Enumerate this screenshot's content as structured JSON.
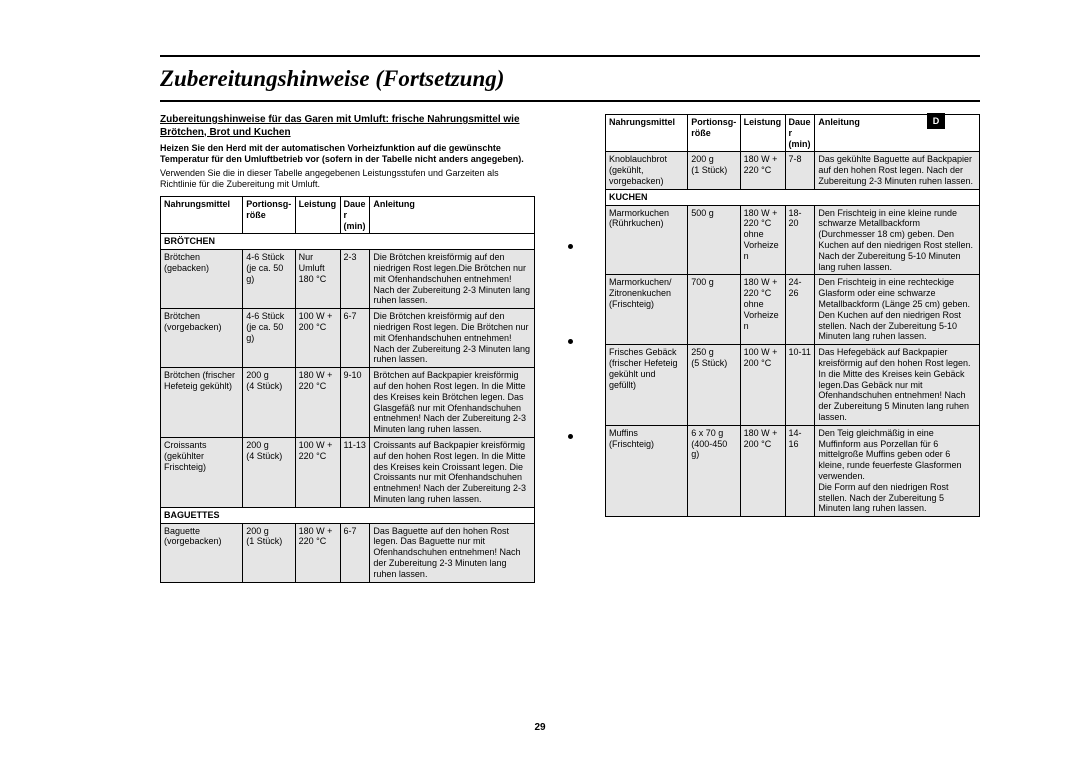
{
  "title": "Zubereitungshinweise (Fortsetzung)",
  "side_tab": "D",
  "page_number": "29",
  "sub_heading": "Zubereitungshinweise für das Garen mit Umluft: frische Nahrungsmittel wie Brötchen, Brot und Kuchen",
  "intro_bold": "Heizen Sie den Herd mit der automatischen Vorheizfunktion auf die gewünschte Temperatur für den Umluftbetrieb vor (sofern in der Tabelle nicht anders angegeben).",
  "intro": "Verwenden Sie die in dieser Tabelle angegebenen Leistungsstufen und Garzeiten als Richtlinie für die Zubereitung mit Umluft.",
  "headers": {
    "food": "Nahrungsmittel",
    "portion": "Portionsg-röße",
    "power": "Leistung",
    "time": "Dauer (min)",
    "instr": "Anleitung"
  },
  "left_sections": [
    {
      "label": "BRÖTCHEN",
      "rows": [
        {
          "food": "Brötchen\n(gebacken)",
          "portion": "4-6 Stück\n(je ca. 50 g)",
          "power": "Nur\nUmluft\n180 °C",
          "time": "2-3",
          "instr": "Die Brötchen kreisförmig auf den niedrigen Rost legen.Die Brötchen nur mit Ofenhandschuhen entnehmen! Nach der Zubereitung 2-3 Minuten lang ruhen lassen."
        },
        {
          "food": "Brötchen\n(vorgebacken)",
          "portion": "4-6 Stück\n(je ca. 50 g)",
          "power": "100 W +\n200 °C",
          "time": "6-7",
          "instr": "Die Brötchen kreisförmig auf den niedrigen Rost legen. Die Brötchen nur mit Ofenhandschuhen entnehmen! Nach der Zubereitung 2-3 Minuten lang ruhen lassen."
        },
        {
          "food": "Brötchen (frischer\nHefeteig gekühlt)",
          "portion": "200 g\n(4 Stück)",
          "power": "180 W +\n220 °C",
          "time": "9-10",
          "instr": "Brötchen auf Backpapier kreisförmig auf den hohen Rost legen. In die Mitte des Kreises kein Brötchen legen. Das Glasgefäß nur mit Ofenhandschuhen entnehmen! Nach der Zubereitung 2-3 Minuten lang ruhen lassen."
        },
        {
          "food": "Croissants\n(gekühlter\nFrischteig)",
          "portion": "200 g\n(4 Stück)",
          "power": "100 W +\n220 °C",
          "time": "11-13",
          "instr": "Croissants auf Backpapier kreisförmig auf den hohen Rost legen. In die Mitte des Kreises kein Croissant legen. Die Croissants nur mit Ofenhandschuhen entnehmen! Nach der Zubereitung 2-3 Minuten lang ruhen lassen."
        }
      ]
    },
    {
      "label": "BAGUETTES",
      "rows": [
        {
          "food": "Baguette\n(vorgebacken)",
          "portion": "200 g\n(1 Stück)",
          "power": "180 W +\n220 °C",
          "time": "6-7",
          "instr": "Das Baguette auf den hohen Rost legen. Das Baguette nur mit Ofenhandschuhen entnehmen! Nach der Zubereitung 2-3 Minuten lang ruhen lassen."
        }
      ]
    }
  ],
  "right_sections": [
    {
      "label": null,
      "rows": [
        {
          "food": "Knoblauchbrot\n(gekühlt,\nvorgebacken)",
          "portion": "200 g\n(1 Stück)",
          "power": "180 W +\n220 °C",
          "time": "7-8",
          "instr": "Das gekühlte Baguette auf Backpapier auf den hohen Rost legen. Nach der Zubereitung 2-3 Minuten ruhen lassen."
        }
      ]
    },
    {
      "label": "KUCHEN",
      "rows": [
        {
          "food": "Marmorkuchen\n(Rührkuchen)",
          "portion": "500 g",
          "power": "180 W +\n220 °C\nohne\nVorheizen",
          "time": "18-20",
          "instr": "Den Frischteig in eine kleine runde schwarze Metallbackform (Durchmesser 18 cm) geben. Den Kuchen auf den niedrigen Rost stellen. Nach der Zubereitung 5-10 Minuten lang ruhen lassen."
        },
        {
          "food": "Marmorkuchen/\nZitronenkuchen\n(Frischteig)",
          "portion": "700 g",
          "power": "180 W +\n220 °C\nohne\nVorheizen",
          "time": "24-26",
          "instr": "Den Frischteig in eine rechteckige Glasform oder eine schwarze Metallbackform (Länge 25 cm) geben. Den Kuchen auf den niedrigen Rost stellen. Nach der Zubereitung 5-10 Minuten lang ruhen lassen."
        },
        {
          "food": "Frisches Gebäck\n(frischer Hefeteig\ngekühlt und gefüllt)",
          "portion": "250 g\n(5 Stück)",
          "power": "100 W +\n200 °C",
          "time": "10-11",
          "instr": "Das Hefegebäck auf Backpapier kreisförmig auf den hohen Rost legen. In die Mitte des Kreises kein Gebäck legen.Das Gebäck nur mit Ofenhandschuhen entnehmen! Nach der Zubereitung 5 Minuten lang ruhen lassen."
        },
        {
          "food": "Muffins\n(Frischteig)",
          "portion": "6 x 70 g\n(400-450 g)",
          "power": "180 W +\n200 °C",
          "time": "14-16",
          "instr": "Den Teig gleichmäßig in eine Muffinform aus Porzellan für 6 mittelgroße Muffins geben oder 6 kleine, runde feuerfeste Glasformen verwenden.\nDie Form auf den niedrigen Rost stellen. Nach der Zubereitung 5 Minuten lang ruhen lassen."
        }
      ]
    }
  ],
  "col_widths": {
    "food": "22%",
    "portion": "14%",
    "power": "12%",
    "time": "8%",
    "instr": "44%"
  }
}
